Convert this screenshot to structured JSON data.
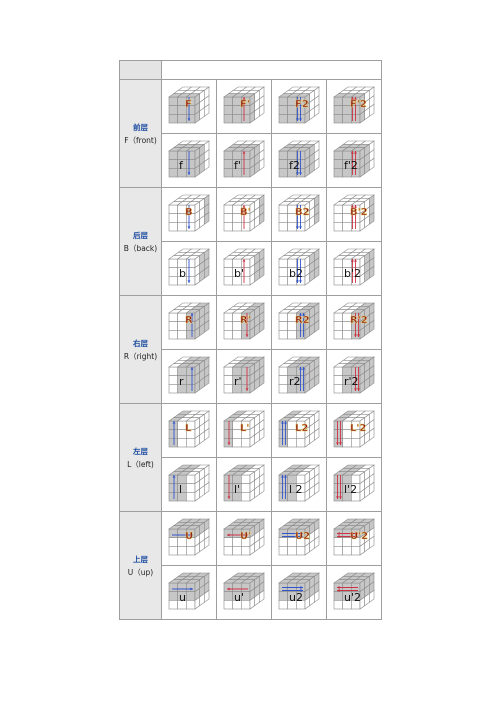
{
  "groups": [
    {
      "cn": "前层",
      "en": "F（front)",
      "moves": [
        [
          "F",
          "F'",
          "F2",
          "F'2"
        ],
        [
          "f",
          "f'",
          "f2",
          "f'2"
        ]
      ]
    },
    {
      "cn": "后层",
      "en": "B（back)",
      "moves": [
        [
          "B",
          "B'",
          "B2",
          "B'2"
        ],
        [
          "b",
          "b'",
          "b2",
          "b'2"
        ]
      ]
    },
    {
      "cn": "右层",
      "en": "R（right)",
      "moves": [
        [
          "R",
          "R'",
          "R2",
          "R'2"
        ],
        [
          "r",
          "r'",
          "r2",
          "r'2"
        ]
      ]
    },
    {
      "cn": "左层",
      "en": "L（left)",
      "moves": [
        [
          "L",
          "L'",
          "L2",
          "L'2"
        ],
        [
          "l",
          "l'",
          "l 2",
          "l'2"
        ]
      ]
    },
    {
      "cn": "上层",
      "en": "U（up)",
      "moves": [
        [
          "U",
          "U'",
          "U2",
          "U'2"
        ],
        [
          "u",
          "u'",
          "u2",
          "u'2"
        ]
      ]
    }
  ],
  "colors": {
    "border": "#9e9e9e",
    "label_cn": "#1f4ea1",
    "arrow_cw": "#3355cc",
    "arrow_ccw": "#cc3344",
    "move_upper": "#8b1a1a"
  }
}
